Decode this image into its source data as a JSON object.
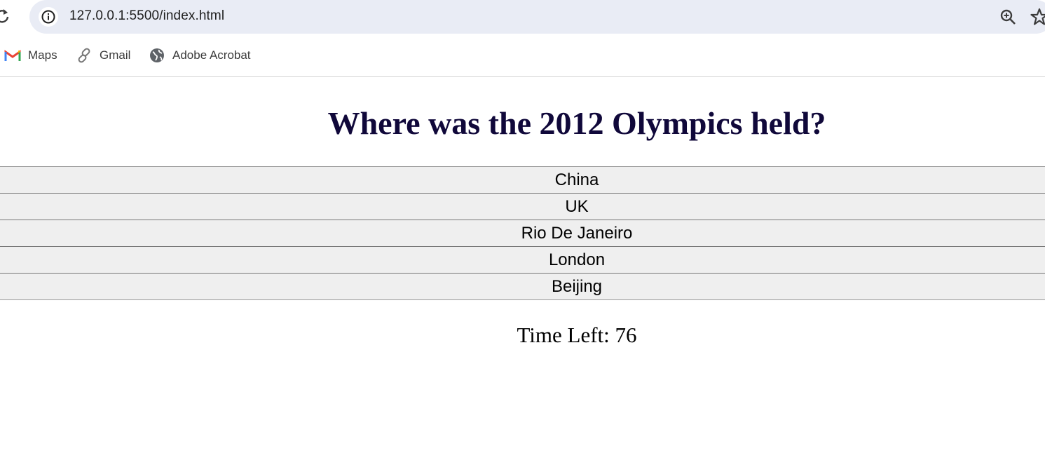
{
  "browser": {
    "url": "127.0.0.1:5500/index.html",
    "bookmarks": [
      {
        "label": "Maps",
        "icon": "gmail-m-icon"
      },
      {
        "label": "Gmail",
        "icon": "link-icon"
      },
      {
        "label": "Adobe Acrobat",
        "icon": "globe-icon"
      }
    ]
  },
  "quiz": {
    "question": "Where was the 2012 Olympics held?",
    "answers": [
      "China",
      "UK",
      "Rio De Janeiro",
      "London",
      "Beijing"
    ],
    "timer_label": "Time Left: 76"
  },
  "colors": {
    "question_text": "#10083a",
    "answer_bg": "#efefef",
    "omnibox_bg": "#e9ecf5"
  }
}
